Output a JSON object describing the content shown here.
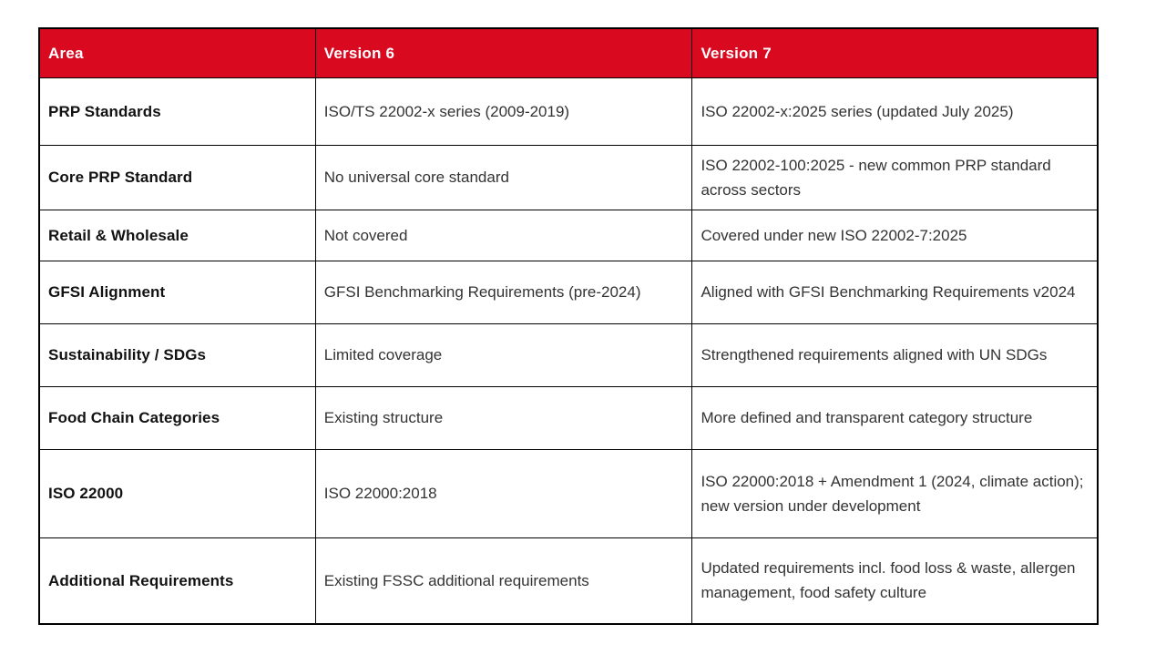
{
  "page": {
    "background": "#ffffff",
    "accent_red": "#D90A20",
    "border_color": "#000000"
  },
  "table": {
    "header": {
      "area": "Area",
      "v6": "Version 6",
      "v7": "Version 7"
    },
    "rows": [
      {
        "area": "PRP Standards",
        "v6": "ISO/TS 22002-x series (2009-2019)",
        "v7": "ISO 22002-x:2025 series (updated July 2025)"
      },
      {
        "area": "Core PRP Standard",
        "v6": "No universal core standard",
        "v7": "ISO 22002-100:2025 - new common PRP standard across sectors"
      },
      {
        "area": "Retail & Wholesale",
        "v6": "Not covered",
        "v7": "Covered under new ISO 22002-7:2025"
      },
      {
        "area": "GFSI Alignment",
        "v6": "GFSI Benchmarking Requirements (pre-2024)",
        "v7": "Aligned with GFSI Benchmarking Requirements v2024"
      },
      {
        "area": "Sustainability / SDGs",
        "v6": "Limited coverage",
        "v7": "Strengthened requirements aligned with UN SDGs"
      },
      {
        "area": "Food Chain Categories",
        "v6": "Existing structure",
        "v7": "More defined and transparent category structure"
      },
      {
        "area": "ISO 22000",
        "v6": "ISO 22000:2018",
        "v7": "ISO 22000:2018 + Amendment 1 (2024, climate action); new version under development"
      },
      {
        "area": "Additional Requirements",
        "v6": "Existing FSSC additional requirements",
        "v7": "Updated requirements incl. food loss & waste, allergen management, food safety culture"
      }
    ]
  }
}
